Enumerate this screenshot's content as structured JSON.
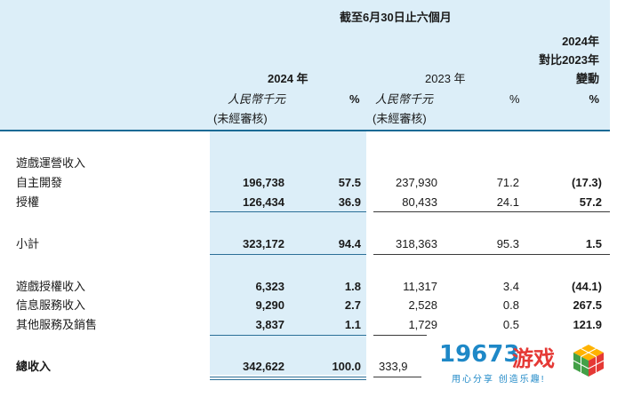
{
  "header": {
    "period": "截至6月30日止六個月",
    "year_2024": "2024 年",
    "year_2023": "2023 年",
    "currency_2024": "人民幣千元",
    "audit_2024": "(未經審核)",
    "pct_2024": "%",
    "currency_2023": "人民幣千元",
    "audit_2023": "(未經審核)",
    "pct_2023": "%",
    "change_l1": "2024年",
    "change_l2": "對比2023年",
    "change_l3": "變動",
    "change_pct": "%"
  },
  "rows": [
    {
      "label": "遊戲運營收入"
    },
    {
      "label": "自主開發",
      "v2024": "196,738",
      "p2024": "57.5",
      "v2023": "237,930",
      "p2023": "71.2",
      "chg": "(17.3)"
    },
    {
      "label": "授權",
      "v2024": "126,434",
      "p2024": "36.9",
      "v2023": "80,433",
      "p2023": "24.1",
      "chg": "57.2"
    },
    {
      "label": "小計",
      "v2024": "323,172",
      "p2024": "94.4",
      "v2023": "318,363",
      "p2023": "95.3",
      "chg": "1.5"
    },
    {
      "label": "遊戲授權收入",
      "v2024": "6,323",
      "p2024": "1.8",
      "v2023": "11,317",
      "p2023": "3.4",
      "chg": "(44.1)"
    },
    {
      "label": "信息服務收入",
      "v2024": "9,290",
      "p2024": "2.7",
      "v2023": "2,528",
      "p2023": "0.8",
      "chg": "267.5"
    },
    {
      "label": "其他服務及銷售",
      "v2024": "3,837",
      "p2024": "1.1",
      "v2023": "1,729",
      "p2023": "0.5",
      "chg": "121.9"
    },
    {
      "label": "總收入",
      "v2024": "342,622",
      "p2024": "100.0",
      "v2023": "333,9"
    }
  ],
  "watermark": {
    "number": "19673",
    "text": "游戏",
    "slogan": "用心分享 创造乐趣!"
  }
}
